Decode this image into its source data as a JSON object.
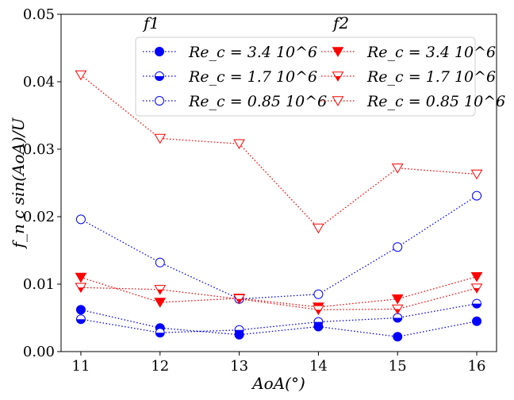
{
  "chart_data": {
    "type": "line",
    "xlabel": "AoA(°)",
    "ylabel": "f_n c sin(AoA)/U",
    "x": [
      11,
      12,
      13,
      14,
      15,
      16
    ],
    "xlim": [
      10.75,
      16.25
    ],
    "ylim": [
      0.0,
      0.05
    ],
    "yticks": [
      "0.00",
      "0.01",
      "0.02",
      "0.03",
      "0.04",
      "0.05"
    ],
    "xticks": [
      "11",
      "12",
      "13",
      "14",
      "15",
      "16"
    ],
    "grid": false,
    "legend_placement": "top-center",
    "legend_groups": [
      {
        "title": "f1",
        "color": "#0000ff"
      },
      {
        "title": "f2",
        "color": "#ff0000"
      }
    ],
    "series": [
      {
        "name": "Re_c = 3.4 10^6",
        "group": "f1",
        "color": "#0000ff",
        "marker": "circle",
        "fill": "full",
        "values": [
          0.0062,
          0.0035,
          0.0025,
          0.0037,
          0.0022,
          0.0045
        ]
      },
      {
        "name": "Re_c = 1.7 10^6",
        "group": "f1",
        "color": "#0000ff",
        "marker": "circle",
        "fill": "half",
        "values": [
          0.0048,
          0.0028,
          0.0032,
          0.0044,
          0.005,
          0.0071
        ]
      },
      {
        "name": "Re_c = 0.85 10^6",
        "group": "f1",
        "color": "#0000ff",
        "marker": "circle",
        "fill": "none",
        "values": [
          0.0196,
          0.0132,
          0.0078,
          0.0085,
          0.0155,
          0.0231
        ]
      },
      {
        "name": "Re_c = 3.4 10^6",
        "group": "f2",
        "color": "#ff0000",
        "marker": "triangle",
        "fill": "full",
        "values": [
          0.011,
          0.0073,
          0.0079,
          0.0066,
          0.0078,
          0.0111
        ]
      },
      {
        "name": "Re_c = 1.7 10^6",
        "group": "f2",
        "color": "#ff0000",
        "marker": "triangle",
        "fill": "half",
        "values": [
          0.0095,
          0.0092,
          0.0078,
          0.0062,
          0.0063,
          0.0094
        ]
      },
      {
        "name": "Re_c = 0.85 10^6",
        "group": "f2",
        "color": "#ff0000",
        "marker": "triangle",
        "fill": "none",
        "values": [
          0.041,
          0.0316,
          0.0308,
          0.0183,
          0.0272,
          0.0263
        ]
      }
    ]
  }
}
